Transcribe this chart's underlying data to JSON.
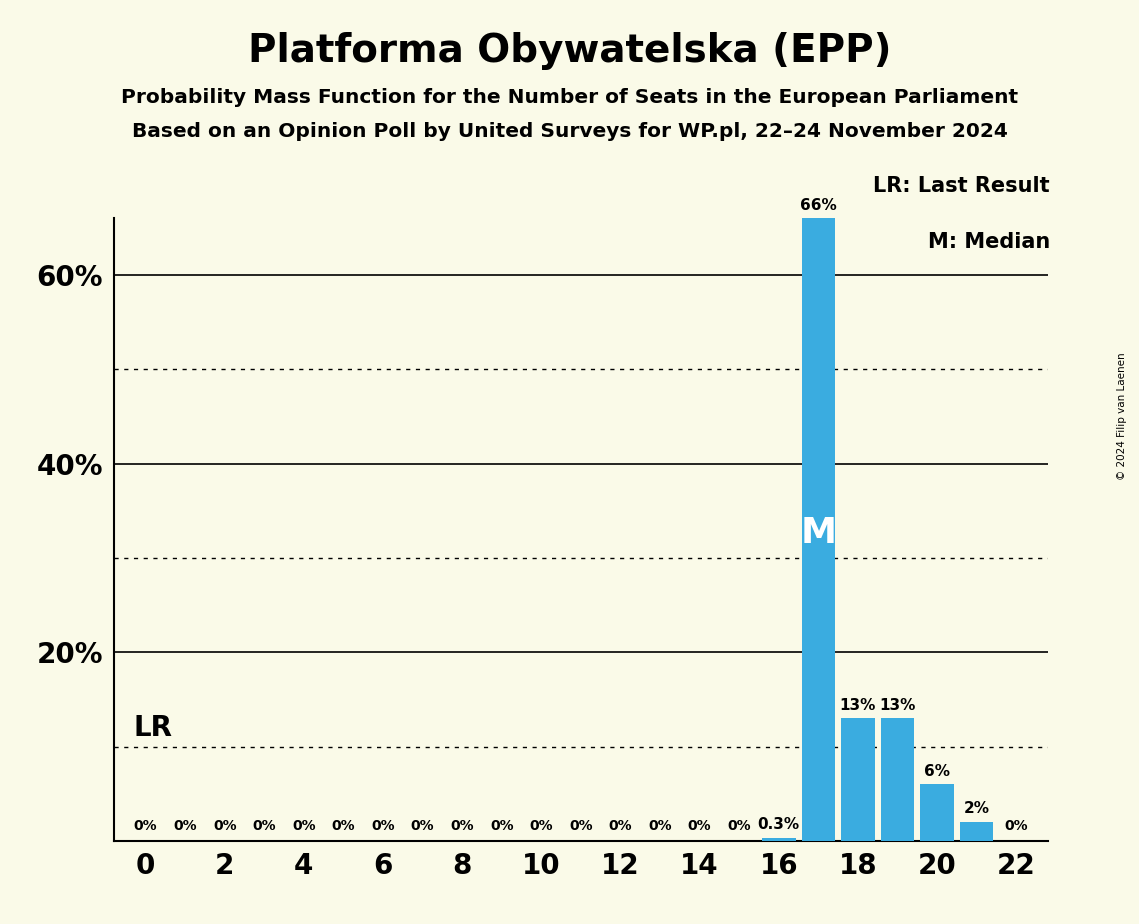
{
  "title": "Platforma Obywatelska (EPP)",
  "subtitle1": "Probability Mass Function for the Number of Seats in the European Parliament",
  "subtitle2": "Based on an Opinion Poll by United Surveys for WP.pl, 22–24 November 2024",
  "copyright": "© 2024 Filip van Laenen",
  "background_color": "#FAFAE8",
  "bar_color": "#3AACE0",
  "seats": [
    0,
    1,
    2,
    3,
    4,
    5,
    6,
    7,
    8,
    9,
    10,
    11,
    12,
    13,
    14,
    15,
    16,
    17,
    18,
    19,
    20,
    21,
    22
  ],
  "probabilities": [
    0,
    0,
    0,
    0,
    0,
    0,
    0,
    0,
    0,
    0,
    0,
    0,
    0,
    0,
    0,
    0,
    0.3,
    66,
    13,
    13,
    6,
    2,
    0
  ],
  "median_seat": 17,
  "last_result_seat": 17,
  "ylim": [
    0,
    72
  ],
  "solid_gridlines": [
    0,
    20,
    40,
    60
  ],
  "dotted_gridlines": [
    10,
    30,
    50
  ],
  "xticks": [
    0,
    2,
    4,
    6,
    8,
    10,
    12,
    14,
    16,
    18,
    20,
    22
  ],
  "bar_labels": [
    "0%",
    "0%",
    "0%",
    "0%",
    "0%",
    "0%",
    "0%",
    "0%",
    "0%",
    "0%",
    "0%",
    "0%",
    "0%",
    "0%",
    "0%",
    "0%",
    "0.3%",
    "66%",
    "13%",
    "13%",
    "6%",
    "2%",
    "0%"
  ],
  "legend_lr_text": "LR: Last Result",
  "legend_m_text": "M: Median",
  "lr_label": "LR",
  "m_label": "M",
  "ytick_positions": [
    20,
    40,
    60
  ],
  "ytick_labels": [
    "20%",
    "40%",
    "60%"
  ]
}
